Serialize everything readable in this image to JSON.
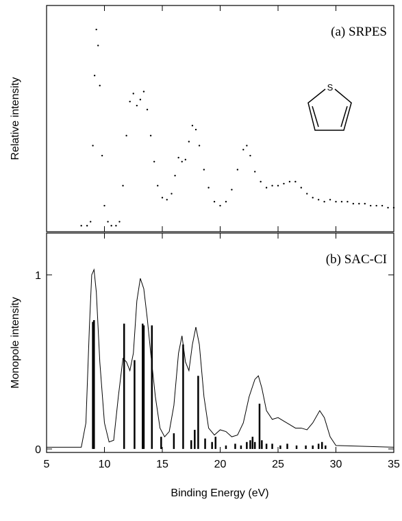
{
  "chart_data": [
    {
      "type": "scatter",
      "label": "(a) SRPES",
      "ylabel": "Relative intensity",
      "color": "#000000",
      "xlim": [
        5,
        35
      ],
      "ylim": [
        -0.03,
        1.1
      ],
      "xticks": [
        5,
        10,
        15,
        20,
        25,
        30,
        35
      ],
      "x": [
        8.0,
        8.5,
        8.8,
        9.0,
        9.15,
        9.3,
        9.45,
        9.6,
        9.8,
        10.0,
        10.3,
        10.6,
        11.0,
        11.3,
        11.6,
        11.9,
        12.2,
        12.5,
        12.8,
        13.1,
        13.4,
        13.7,
        14.0,
        14.3,
        14.6,
        15.0,
        15.4,
        15.8,
        16.1,
        16.4,
        16.7,
        17.0,
        17.3,
        17.6,
        17.9,
        18.2,
        18.6,
        19.0,
        19.5,
        20.0,
        20.5,
        21.0,
        21.5,
        22.0,
        22.3,
        22.6,
        23.0,
        23.5,
        24.0,
        24.5,
        25.0,
        25.5,
        26.0,
        26.5,
        27.0,
        27.5,
        28.0,
        28.5,
        29.0,
        29.5,
        30.0,
        30.5,
        31.0,
        31.5,
        32.0,
        32.5,
        33.0,
        33.5,
        34.0,
        34.5,
        35.0
      ],
      "values": [
        0.0,
        0.0,
        0.02,
        0.4,
        0.75,
        0.98,
        0.9,
        0.7,
        0.35,
        0.1,
        0.02,
        0.0,
        0.0,
        0.02,
        0.2,
        0.45,
        0.62,
        0.66,
        0.6,
        0.63,
        0.67,
        0.58,
        0.45,
        0.32,
        0.2,
        0.14,
        0.13,
        0.16,
        0.25,
        0.34,
        0.32,
        0.33,
        0.42,
        0.5,
        0.48,
        0.4,
        0.28,
        0.19,
        0.12,
        0.1,
        0.12,
        0.18,
        0.28,
        0.38,
        0.4,
        0.35,
        0.27,
        0.22,
        0.19,
        0.2,
        0.2,
        0.21,
        0.22,
        0.22,
        0.19,
        0.16,
        0.14,
        0.13,
        0.12,
        0.13,
        0.12,
        0.12,
        0.12,
        0.11,
        0.11,
        0.11,
        0.1,
        0.1,
        0.1,
        0.09,
        0.09
      ]
    },
    {
      "type": "line",
      "label": "(b) SAC-CI",
      "xlabel": "Binding Energy (eV)",
      "ylabel": "Monopole intensity",
      "color": "#000000",
      "xlim": [
        5,
        35
      ],
      "ylim": [
        -0.02,
        1.24
      ],
      "xticks": [
        5,
        10,
        15,
        20,
        25,
        30,
        35
      ],
      "yticks": [
        0,
        1
      ],
      "x": [
        5,
        8,
        8.4,
        8.7,
        8.9,
        9.1,
        9.3,
        9.6,
        10.0,
        10.4,
        10.8,
        11.2,
        11.6,
        11.9,
        12.2,
        12.5,
        12.8,
        13.1,
        13.4,
        13.7,
        14.0,
        14.4,
        14.8,
        15.2,
        15.6,
        16.0,
        16.4,
        16.7,
        17.0,
        17.3,
        17.6,
        17.9,
        18.2,
        18.6,
        19.0,
        19.5,
        20.0,
        20.5,
        21.0,
        21.5,
        22.0,
        22.5,
        23.0,
        23.3,
        23.6,
        24.0,
        24.5,
        25.0,
        25.5,
        26.0,
        26.5,
        27.0,
        27.5,
        28.0,
        28.6,
        29.0,
        29.5,
        30.0,
        35
      ],
      "values": [
        0.01,
        0.01,
        0.15,
        0.7,
        1.0,
        1.03,
        0.9,
        0.5,
        0.15,
        0.04,
        0.05,
        0.3,
        0.52,
        0.5,
        0.45,
        0.55,
        0.85,
        0.98,
        0.92,
        0.75,
        0.55,
        0.3,
        0.12,
        0.07,
        0.1,
        0.25,
        0.55,
        0.65,
        0.5,
        0.45,
        0.6,
        0.7,
        0.6,
        0.3,
        0.12,
        0.08,
        0.11,
        0.1,
        0.07,
        0.08,
        0.15,
        0.3,
        0.4,
        0.42,
        0.35,
        0.22,
        0.17,
        0.18,
        0.16,
        0.14,
        0.12,
        0.12,
        0.11,
        0.15,
        0.22,
        0.18,
        0.07,
        0.02,
        0.01
      ],
      "sticks": {
        "x": [
          9.0,
          9.1,
          11.7,
          12.6,
          13.3,
          13.4,
          14.1,
          14.9,
          16.0,
          16.8,
          17.5,
          17.8,
          18.1,
          18.7,
          19.3,
          19.6,
          20.5,
          21.3,
          21.8,
          22.3,
          22.6,
          22.8,
          23.0,
          23.4,
          23.6,
          24.0,
          24.5,
          25.2,
          25.8,
          26.6,
          27.4,
          28.0,
          28.5,
          28.8,
          29.1
        ],
        "values": [
          0.73,
          0.74,
          0.72,
          0.51,
          0.72,
          0.71,
          0.71,
          0.07,
          0.09,
          0.6,
          0.05,
          0.11,
          0.42,
          0.06,
          0.04,
          0.07,
          0.02,
          0.03,
          0.02,
          0.04,
          0.05,
          0.07,
          0.04,
          0.26,
          0.05,
          0.03,
          0.03,
          0.02,
          0.03,
          0.02,
          0.02,
          0.02,
          0.03,
          0.04,
          0.02
        ]
      }
    }
  ]
}
